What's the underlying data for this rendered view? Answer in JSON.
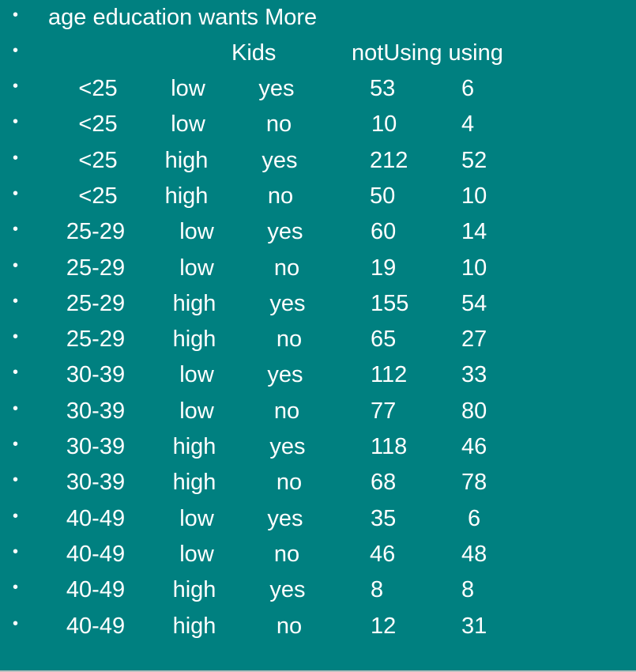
{
  "bullet_char": "•",
  "header": {
    "line1": "age education wants  More",
    "kids": "Kids",
    "notUsing_using": "notUsing using"
  },
  "rows": [
    {
      "age": "<25",
      "education": "low",
      "wantsMore": "yes",
      "notUsing": "53",
      "using": "6"
    },
    {
      "age": "<25",
      "education": "low",
      "wantsMore": "no",
      "notUsing": "10",
      "using": "4"
    },
    {
      "age": "<25",
      "education": "high",
      "wantsMore": "yes",
      "notUsing": "212",
      "using": "52"
    },
    {
      "age": "<25",
      "education": "high",
      "wantsMore": "no",
      "notUsing": "50",
      "using": "10"
    },
    {
      "age": "25-29",
      "education": "low",
      "wantsMore": "yes",
      "notUsing": "60",
      "using": "14"
    },
    {
      "age": "25-29",
      "education": "low",
      "wantsMore": "no",
      "notUsing": "19",
      "using": "10"
    },
    {
      "age": "25-29",
      "education": "high",
      "wantsMore": "yes",
      "notUsing": "155",
      "using": "54"
    },
    {
      "age": "25-29",
      "education": "high",
      "wantsMore": "no",
      "notUsing": "65",
      "using": "27"
    },
    {
      "age": "30-39",
      "education": "low",
      "wantsMore": "yes",
      "notUsing": "112",
      "using": "33"
    },
    {
      "age": "30-39",
      "education": "low",
      "wantsMore": "no",
      "notUsing": "77",
      "using": "80"
    },
    {
      "age": "30-39",
      "education": "high",
      "wantsMore": "yes",
      "notUsing": "118",
      "using": "46"
    },
    {
      "age": "30-39",
      "education": "high",
      "wantsMore": "no",
      "notUsing": "68",
      "using": "78"
    },
    {
      "age": "40-49",
      "education": "low",
      "wantsMore": "yes",
      "notUsing": "35",
      "using": "6"
    },
    {
      "age": "40-49",
      "education": "low",
      "wantsMore": "no",
      "notUsing": "46",
      "using": "48"
    },
    {
      "age": "40-49",
      "education": "high",
      "wantsMore": "yes",
      "notUsing": "8",
      "using": "8"
    },
    {
      "age": "40-49",
      "education": "high",
      "wantsMore": "no",
      "notUsing": "12",
      "using": "31"
    }
  ],
  "colors": {
    "background": "#008080",
    "text": "#ffffff"
  }
}
